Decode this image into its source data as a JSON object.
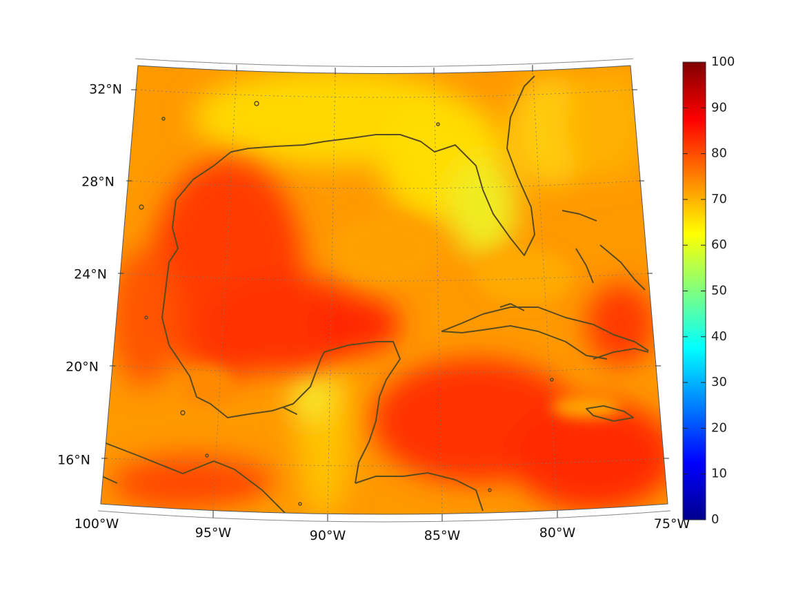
{
  "map": {
    "projection": "conic",
    "region": "Gulf of Mexico and Caribbean",
    "lon_range": [
      -100,
      -75
    ],
    "lat_range": [
      14,
      32
    ],
    "lat_labels": [
      "32°N",
      "28°N",
      "24°N",
      "20°N",
      "16°N"
    ],
    "lon_labels": [
      "100°W",
      "95°W",
      "90°W",
      "85°W",
      "80°W",
      "75°W"
    ],
    "graticule": "dotted",
    "coastline_color": "#5a4a1e"
  },
  "colorbar": {
    "colormap": "jet",
    "min": 0,
    "max": 100,
    "tick_labels": [
      "100",
      "90",
      "80",
      "70",
      "60",
      "50",
      "40",
      "30",
      "20",
      "10",
      "0"
    ]
  },
  "field": {
    "dominant_range": [
      60,
      90
    ],
    "high_zones": [
      "western Gulf of Mexico",
      "Bay of Campeche",
      "Yucatan Channel",
      "central Caribbean Sea"
    ],
    "low_zones": [
      "northern Gulf coast",
      "Florida",
      "Yucatan west coast"
    ]
  }
}
